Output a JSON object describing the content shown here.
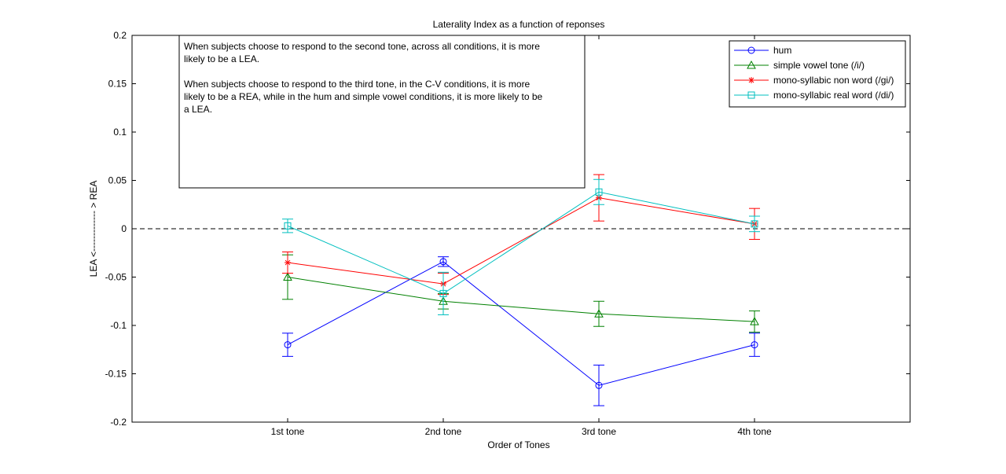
{
  "chart_data": {
    "type": "line",
    "title": "Laterality Index as a function of reponses",
    "xlabel": "Order of Tones",
    "ylabel": "LEA <------------- > REA",
    "categories": [
      "1st tone",
      "2nd tone",
      "3rd tone",
      "4th tone"
    ],
    "xlim": [
      0,
      5
    ],
    "ylim": [
      -0.2,
      0.2
    ],
    "yticks": [
      -0.2,
      -0.15,
      -0.1,
      -0.05,
      0,
      0.05,
      0.1,
      0.15,
      0.2
    ],
    "ytick_labels": [
      "-0.2",
      "-0.15",
      "-0.1",
      "-0.05",
      "0",
      "0.05",
      "0.1",
      "0.15",
      "0.2"
    ],
    "reference_line": {
      "y": 0,
      "style": "dashed",
      "color": "#000000"
    },
    "series": [
      {
        "name": "hum",
        "color": "#0000ff",
        "marker": "circle",
        "values": [
          -0.12,
          -0.034,
          -0.162,
          -0.12
        ],
        "errors": [
          0.012,
          0.005,
          0.021,
          0.012
        ]
      },
      {
        "name": "simple vowel tone (/i/)",
        "color": "#008000",
        "marker": "triangle",
        "values": [
          -0.05,
          -0.075,
          -0.088,
          -0.096
        ],
        "errors": [
          0.023,
          0.008,
          0.013,
          0.011
        ]
      },
      {
        "name": "mono-syllabic non word (/gi/)",
        "color": "#ff0000",
        "marker": "asterisk",
        "values": [
          -0.035,
          -0.057,
          0.032,
          0.005
        ],
        "errors": [
          0.011,
          0.011,
          0.024,
          0.016
        ]
      },
      {
        "name": "mono-syllabic real word (/di/)",
        "color": "#00bfbf",
        "marker": "square",
        "values": [
          0.003,
          -0.067,
          0.038,
          0.005
        ],
        "errors": [
          0.007,
          0.022,
          0.013,
          0.008
        ]
      }
    ],
    "annotation": [
      "When subjects choose to respond to the second tone, across all conditions, it is more",
      "likely to be a LEA.",
      "",
      "When subjects choose to respond to the third tone, in the C-V conditions, it is more",
      "likely to be a REA, while in the hum and simple vowel conditions, it is more likely to be",
      "a LEA."
    ],
    "legend_position": "top-right",
    "grid": false
  }
}
